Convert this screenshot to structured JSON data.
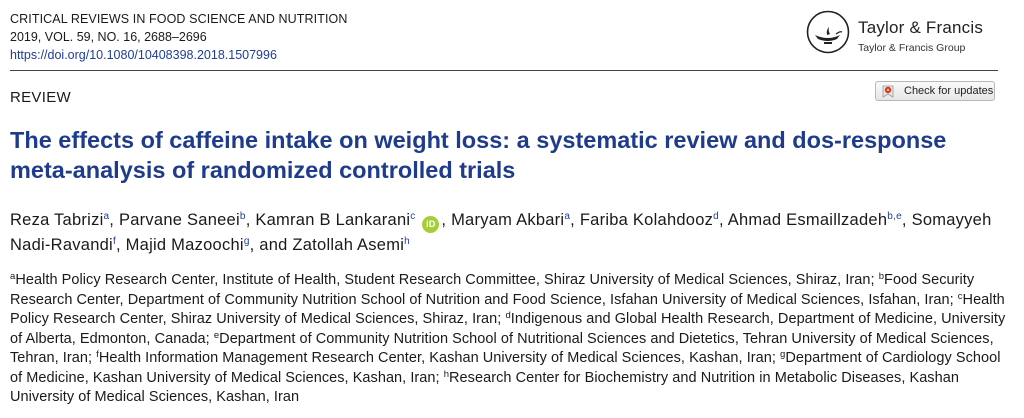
{
  "journal": {
    "name": "CRITICAL REVIEWS IN FOOD SCIENCE AND NUTRITION",
    "citation": "2019, VOL. 59, NO. 16, 2688–2696",
    "doi": "https://doi.org/10.1080/10408398.2018.1507996"
  },
  "publisher": {
    "name": "Taylor & Francis",
    "group": "Taylor & Francis Group",
    "logo_icon": "lamp-logo-icon"
  },
  "section_label": "REVIEW",
  "check_updates": {
    "label": "Check for updates",
    "icon": "check-updates-icon",
    "icon_color": "#d9352b"
  },
  "title": "The effects of caffeine intake on weight loss: a systematic review and dos-response meta-analysis of randomized controlled trials",
  "colors": {
    "title": "#1f3c8c",
    "link": "#1f3d99",
    "orcid": "#a6ce39"
  },
  "authors": [
    {
      "name": "Reza Tabrizi",
      "sup": "a",
      "sep": ", "
    },
    {
      "name": "Parvane Saneei",
      "sup": "b",
      "sep": ", "
    },
    {
      "name": "Kamran B Lankarani",
      "sup": "c",
      "sep": " ",
      "orcid": "iD"
    },
    {
      "name": "",
      "sup": "",
      "sep": ", "
    },
    {
      "name": "Maryam Akbari",
      "sup": "a",
      "sep": ", "
    },
    {
      "name": "Fariba Kolahdooz",
      "sup": "d",
      "sep": ", "
    },
    {
      "name": "Ahmad Esmaillzadeh",
      "sup": "b,e",
      "sep": ", "
    },
    {
      "name": "Somayyeh Nadi-Ravandi",
      "sup": "f",
      "sep": ", "
    },
    {
      "name": "Majid Mazoochi",
      "sup": "g",
      "sep": ", and "
    },
    {
      "name": "Zatollah Asemi",
      "sup": "h",
      "sep": ""
    }
  ],
  "affiliations": [
    {
      "sup": "a",
      "text": "Health Policy Research Center, Institute of Health, Student Research Committee, Shiraz University of Medical Sciences, Shiraz, Iran; "
    },
    {
      "sup": "b",
      "text": "Food Security Research Center, Department of Community Nutrition School of Nutrition and Food Science, Isfahan University of Medical Sciences, Isfahan, Iran; "
    },
    {
      "sup": "c",
      "text": "Health Policy Research Center, Shiraz University of Medical Sciences, Shiraz, Iran; "
    },
    {
      "sup": "d",
      "text": "Indigenous and Global Health Research, Department of Medicine, University of Alberta, Edmonton, Canada; "
    },
    {
      "sup": "e",
      "text": "Department of Community Nutrition School of Nutritional Sciences and Dietetics, Tehran University of Medical Sciences, Tehran, Iran; "
    },
    {
      "sup": "f",
      "text": "Health Information Management Research Center, Kashan University of Medical Sciences, Kashan, Iran; "
    },
    {
      "sup": "g",
      "text": "Department of Cardiology School of Medicine, Kashan University of Medical Sciences, Kashan, Iran; "
    },
    {
      "sup": "h",
      "text": "Research Center for Biochemistry and Nutrition in Metabolic Diseases, Kashan University of Medical Sciences, Kashan, Iran"
    }
  ]
}
